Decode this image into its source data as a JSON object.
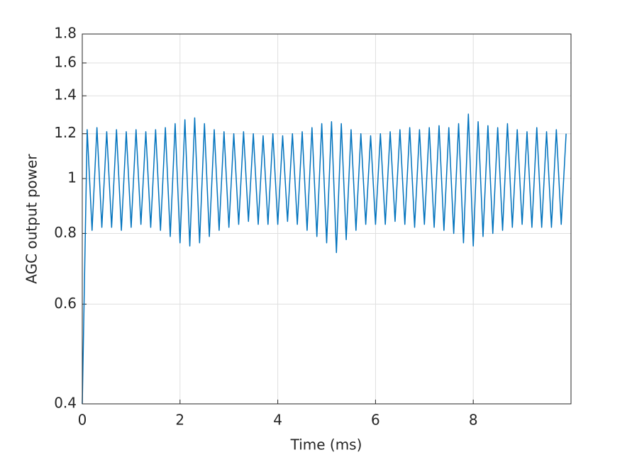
{
  "chart_data": {
    "type": "line",
    "log_y": true,
    "grid": true,
    "xlabel": "Time (ms)",
    "ylabel": "AGC output power",
    "xlim": [
      0,
      10
    ],
    "xticks": [
      0,
      2,
      4,
      6,
      8
    ],
    "ylim": [
      0.4,
      1.8
    ],
    "yticks": [
      0.4,
      0.6,
      0.8,
      1,
      1.2,
      1.4,
      1.6,
      1.8
    ],
    "x": [
      0,
      0.1,
      0.2,
      0.3,
      0.4,
      0.5,
      0.6,
      0.7,
      0.8,
      0.9,
      1.0,
      1.1,
      1.2,
      1.3,
      1.4,
      1.5,
      1.6,
      1.7,
      1.8,
      1.9,
      2.0,
      2.1,
      2.2,
      2.3,
      2.4,
      2.5,
      2.6,
      2.7,
      2.8,
      2.9,
      3.0,
      3.1,
      3.2,
      3.3,
      3.4,
      3.5,
      3.6,
      3.7,
      3.8,
      3.9,
      4.0,
      4.1,
      4.2,
      4.3,
      4.4,
      4.5,
      4.6,
      4.7,
      4.8,
      4.9,
      5.0,
      5.1,
      5.2,
      5.3,
      5.4,
      5.5,
      5.6,
      5.7,
      5.8,
      5.9,
      6.0,
      6.1,
      6.2,
      6.3,
      6.4,
      6.5,
      6.6,
      6.7,
      6.8,
      6.9,
      7.0,
      7.1,
      7.2,
      7.3,
      7.4,
      7.5,
      7.6,
      7.7,
      7.8,
      7.9,
      8.0,
      8.1,
      8.2,
      8.3,
      8.4,
      8.5,
      8.6,
      8.7,
      8.8,
      8.9,
      9.0,
      9.1,
      9.2,
      9.3,
      9.4,
      9.5,
      9.6,
      9.7,
      9.8,
      9.9
    ],
    "series": [
      {
        "color": "#0072bd",
        "values": [
          0.4,
          1.22,
          0.81,
          1.23,
          0.82,
          1.21,
          0.82,
          1.22,
          0.81,
          1.21,
          0.82,
          1.22,
          0.83,
          1.21,
          0.82,
          1.22,
          0.81,
          1.23,
          0.79,
          1.25,
          0.77,
          1.27,
          0.76,
          1.28,
          0.77,
          1.25,
          0.79,
          1.22,
          0.81,
          1.21,
          0.82,
          1.2,
          0.83,
          1.21,
          0.84,
          1.2,
          0.83,
          1.19,
          0.83,
          1.2,
          0.83,
          1.19,
          0.84,
          1.2,
          0.83,
          1.21,
          0.81,
          1.23,
          0.79,
          1.25,
          0.77,
          1.26,
          0.74,
          1.25,
          0.78,
          1.22,
          0.81,
          1.2,
          0.83,
          1.19,
          0.83,
          1.2,
          0.83,
          1.21,
          0.84,
          1.22,
          0.83,
          1.23,
          0.82,
          1.22,
          0.83,
          1.23,
          0.82,
          1.24,
          0.81,
          1.23,
          0.8,
          1.25,
          0.77,
          1.3,
          0.76,
          1.26,
          0.79,
          1.24,
          0.8,
          1.23,
          0.81,
          1.25,
          0.82,
          1.22,
          0.83,
          1.21,
          0.82,
          1.23,
          0.82,
          1.21,
          0.82,
          1.22,
          0.83,
          1.2
        ]
      }
    ]
  }
}
